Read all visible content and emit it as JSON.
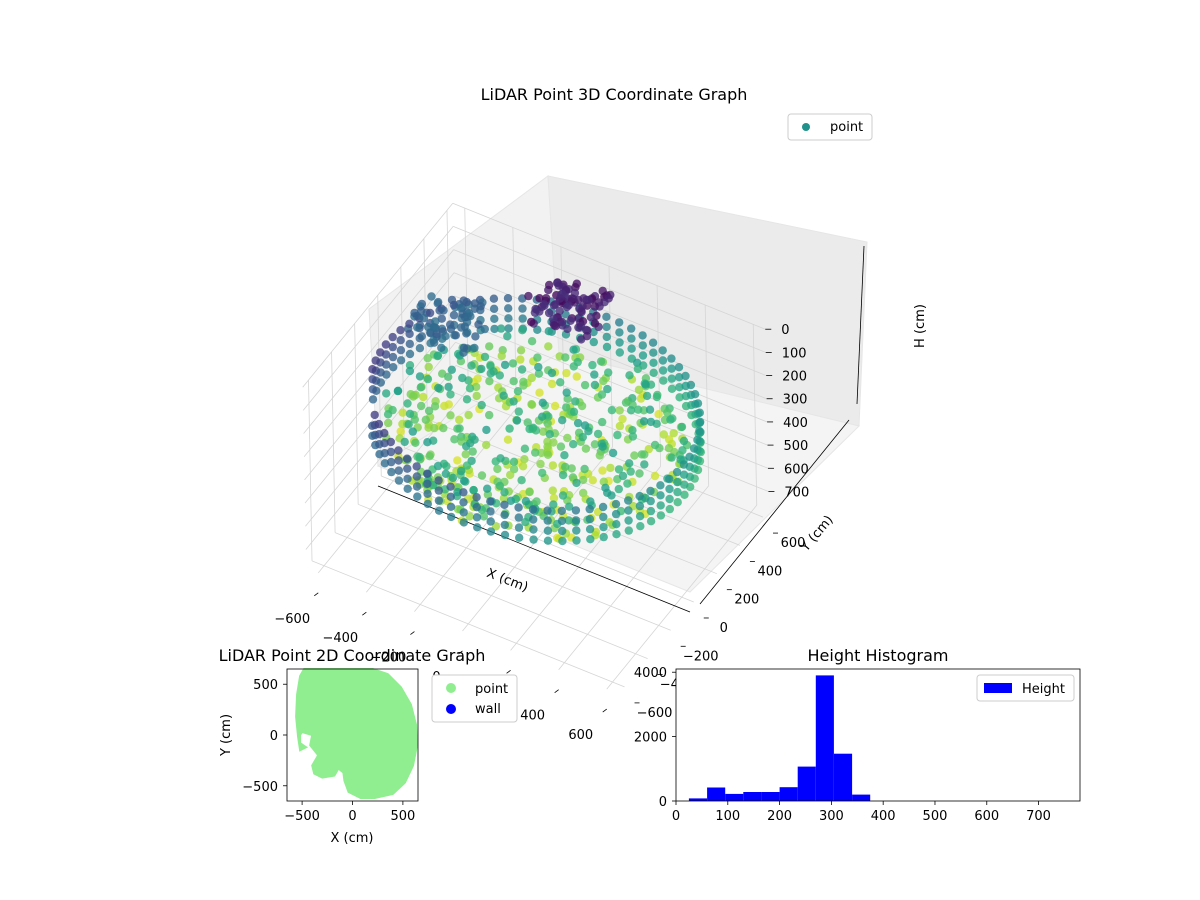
{
  "chart_data": [
    {
      "type": "scatter",
      "projection": "3d",
      "title": "LiDAR Point 3D Coordinate Graph",
      "xlabel": "X (cm)",
      "ylabel": "Y (cm)",
      "zlabel": "H (cm)",
      "xlim": [
        -650,
        650
      ],
      "ylim": [
        -650,
        650
      ],
      "zlim": [
        0,
        780
      ],
      "z_inverted": true,
      "xticks": [
        -600,
        -400,
        -200,
        0,
        200,
        400,
        600
      ],
      "yticks": [
        -600,
        -400,
        -200,
        0,
        200,
        400,
        600
      ],
      "zticks": [
        0,
        100,
        200,
        300,
        400,
        500,
        600,
        700
      ],
      "colormap": "viridis",
      "legend": {
        "position": "top-right",
        "entries": [
          {
            "name": "point",
            "color": "#21918c"
          }
        ]
      },
      "grid": true,
      "point_cloud": {
        "shape": "ring-shaped room scan",
        "radius_cm": 620,
        "wall_height_range_cm": [
          200,
          330
        ],
        "floor_height_range_cm": [
          280,
          380
        ],
        "low_corner_height_range_cm": [
          30,
          130
        ]
      }
    },
    {
      "type": "scatter",
      "title": "LiDAR Point 2D Coordinate Graph",
      "xlabel": "X (cm)",
      "ylabel": "Y (cm)",
      "xlim": [
        -650,
        650
      ],
      "ylim": [
        -650,
        650
      ],
      "xticks": [
        -500,
        0,
        500
      ],
      "yticks": [
        -500,
        0,
        500
      ],
      "legend": {
        "position": "outside-right",
        "entries": [
          {
            "name": "point",
            "color": "#90ee90"
          },
          {
            "name": "wall",
            "color": "#0000ff"
          }
        ]
      },
      "outline": [
        [
          -480,
          680
        ],
        [
          -380,
          690
        ],
        [
          -200,
          700
        ],
        [
          0,
          700
        ],
        [
          200,
          680
        ],
        [
          350,
          600
        ],
        [
          480,
          470
        ],
        [
          580,
          300
        ],
        [
          630,
          100
        ],
        [
          640,
          -100
        ],
        [
          600,
          -300
        ],
        [
          520,
          -470
        ],
        [
          400,
          -580
        ],
        [
          220,
          -620
        ],
        [
          80,
          -620
        ],
        [
          -40,
          -560
        ],
        [
          -80,
          -450
        ],
        [
          -90,
          -370
        ],
        [
          -140,
          -330
        ],
        [
          -180,
          -400
        ],
        [
          -300,
          -420
        ],
        [
          -380,
          -380
        ],
        [
          -400,
          -300
        ],
        [
          -340,
          -200
        ],
        [
          -420,
          -100
        ],
        [
          -400,
          0
        ],
        [
          -500,
          30
        ],
        [
          -520,
          0
        ],
        [
          -520,
          -80
        ],
        [
          -460,
          -120
        ],
        [
          -520,
          -150
        ],
        [
          -540,
          -20
        ],
        [
          -560,
          180
        ],
        [
          -550,
          400
        ],
        [
          -520,
          580
        ]
      ]
    },
    {
      "type": "bar",
      "title": "Height Histogram",
      "xlabel": "",
      "ylabel": "",
      "xlim": [
        0,
        780
      ],
      "ylim": [
        0,
        4100
      ],
      "xticks": [
        0,
        100,
        200,
        300,
        400,
        500,
        600,
        700
      ],
      "yticks": [
        0,
        2000,
        4000
      ],
      "bar_color": "#0000ff",
      "legend": {
        "position": "top-right",
        "entries": [
          {
            "name": "Height",
            "color": "#0000ff"
          }
        ]
      },
      "bin_edges": [
        25,
        60,
        95,
        130,
        165,
        200,
        235,
        270,
        305,
        340,
        375
      ],
      "values": [
        80,
        420,
        220,
        280,
        280,
        430,
        1070,
        3900,
        1470,
        200
      ]
    }
  ]
}
